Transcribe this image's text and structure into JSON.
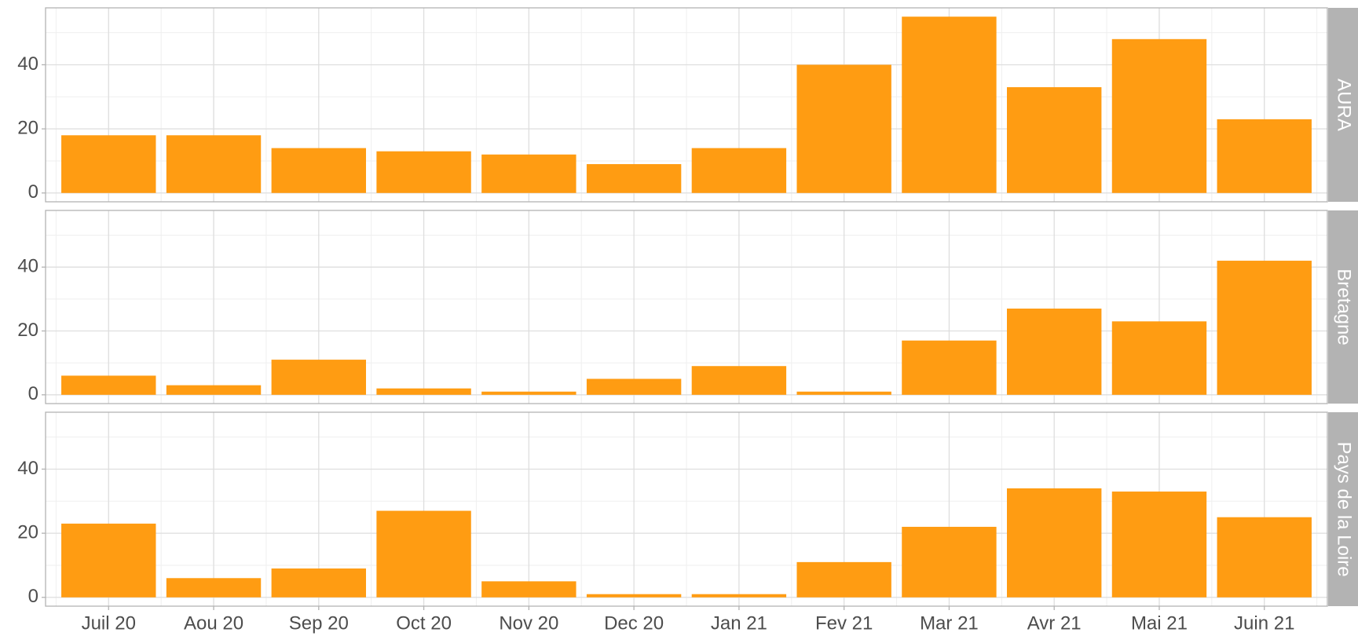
{
  "chart_data": {
    "type": "bar",
    "color": "#ff9c12",
    "grid": true,
    "categories": [
      "Juil 20",
      "Aou 20",
      "Sep 20",
      "Oct 20",
      "Nov 20",
      "Dec 20",
      "Jan 21",
      "Fev 21",
      "Mar 21",
      "Avr 21",
      "Mai 21",
      "Juin 21"
    ],
    "ylim": [
      -2.75,
      57.75
    ],
    "yticks": [
      0,
      20,
      40
    ],
    "minor_yticks": [
      10,
      30,
      50
    ],
    "panels": [
      {
        "name": "AURA",
        "values": [
          18,
          18,
          14,
          13,
          12,
          9,
          14,
          40,
          55,
          33,
          48,
          23
        ]
      },
      {
        "name": "Bretagne",
        "values": [
          6,
          3,
          11,
          2,
          1,
          5,
          9,
          1,
          17,
          27,
          23,
          42
        ]
      },
      {
        "name": "Pays de la Loire",
        "values": [
          23,
          6,
          9,
          27,
          5,
          1,
          1,
          11,
          22,
          34,
          33,
          25
        ]
      }
    ]
  }
}
